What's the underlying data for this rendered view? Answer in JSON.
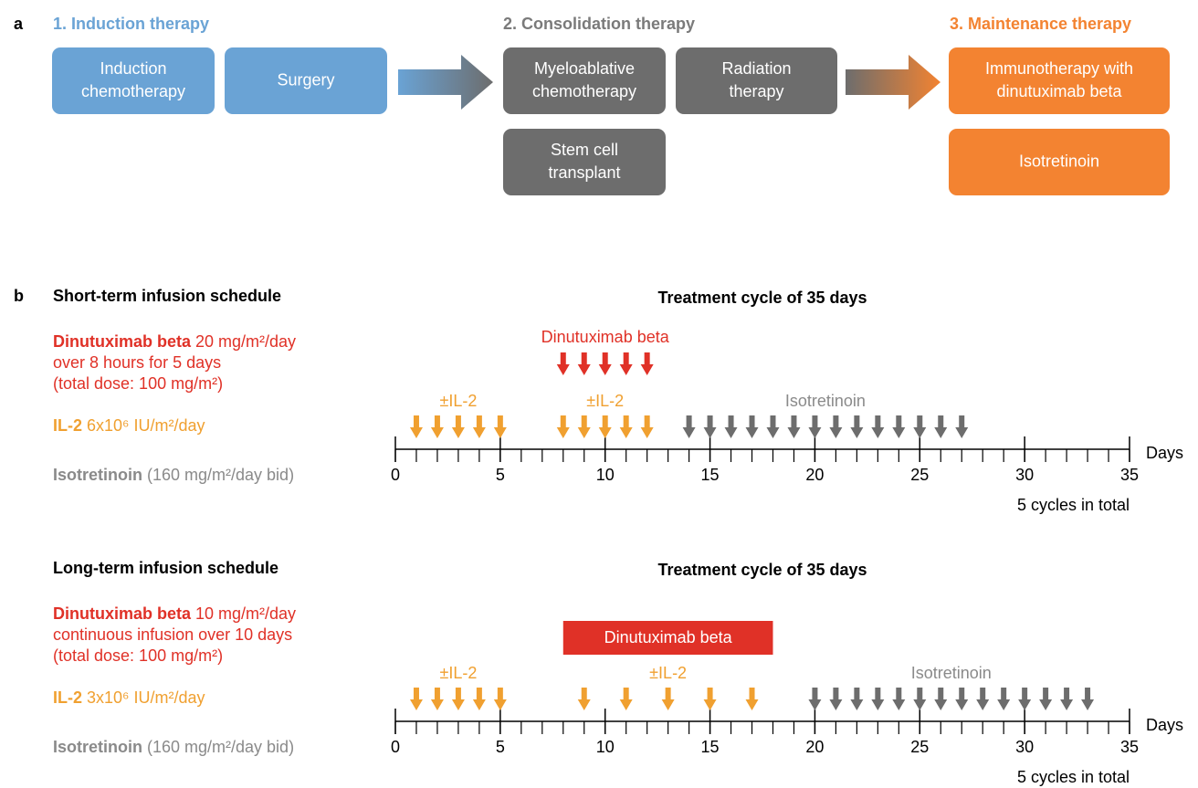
{
  "panel_a": {
    "label": "a",
    "stages": [
      {
        "title": "1. Induction therapy",
        "boxes": [
          [
            "Induction",
            "chemotherapy"
          ],
          [
            "Surgery"
          ]
        ]
      },
      {
        "title": "2. Consolidation therapy",
        "boxes": [
          [
            "Myeloablative",
            "chemotherapy"
          ],
          [
            "Radiation",
            "therapy"
          ],
          [
            "Stem cell",
            "transplant"
          ]
        ]
      },
      {
        "title": "3. Maintenance therapy",
        "boxes": [
          [
            "Immunotherapy with",
            "dinutuximab beta"
          ],
          [
            "Isotretinoin"
          ]
        ]
      }
    ]
  },
  "panel_b": {
    "label": "b",
    "schedules": [
      {
        "title": "Short-term infusion schedule",
        "cycle_title": "Treatment cycle of 35 days",
        "drug_lines": [
          {
            "name": "Dinutuximab beta",
            "dose": " 20 mg/m²/day",
            "more": [
              "over 8 hours for 5 days",
              "(total dose: 100 mg/m²)"
            ]
          },
          {
            "name": "IL-2",
            "dose": " 6x10⁶ IU/m²/day",
            "more": []
          },
          {
            "name": "Isotretinoin",
            "dose": " (160 mg/m²/day bid)",
            "more": []
          }
        ],
        "dinutuximab": {
          "label": "Dinutuximab beta",
          "days": [
            8,
            9,
            10,
            11,
            12
          ]
        },
        "il2": [
          {
            "label": "±IL-2",
            "days": [
              1,
              2,
              3,
              4,
              5
            ]
          },
          {
            "label": "±IL-2",
            "days": [
              8,
              9,
              10,
              11,
              12
            ]
          }
        ],
        "isotretinoin": {
          "label": "Isotretinoin",
          "days": [
            14,
            15,
            16,
            17,
            18,
            19,
            20,
            21,
            22,
            23,
            24,
            25,
            26,
            27
          ]
        },
        "xlim": [
          0,
          35
        ],
        "xticks": [
          0,
          5,
          10,
          15,
          20,
          25,
          30,
          35
        ],
        "axis_label": "Days",
        "note": "5 cycles in total"
      },
      {
        "title": "Long-term infusion schedule",
        "cycle_title": "Treatment cycle of 35 days",
        "drug_lines": [
          {
            "name": "Dinutuximab beta",
            "dose": " 10 mg/m²/day",
            "more": [
              "continuous infusion over 10 days",
              "(total dose: 100 mg/m²)"
            ]
          },
          {
            "name": "IL-2",
            "dose": " 3x10⁶ IU/m²/day",
            "more": []
          },
          {
            "name": "Isotretinoin",
            "dose": " (160 mg/m²/day bid)",
            "more": []
          }
        ],
        "dinutuximab_bar": {
          "label": "Dinutuximab beta",
          "start": 8,
          "end": 18
        },
        "il2": [
          {
            "label": "±IL-2",
            "days": [
              1,
              2,
              3,
              4,
              5
            ]
          },
          {
            "label": "±IL-2",
            "days": [
              9,
              11,
              13,
              15,
              17
            ]
          }
        ],
        "isotretinoin": {
          "label": "Isotretinoin",
          "days": [
            20,
            21,
            22,
            23,
            24,
            25,
            26,
            27,
            28,
            29,
            30,
            31,
            32,
            33
          ]
        },
        "xlim": [
          0,
          35
        ],
        "xticks": [
          0,
          5,
          10,
          15,
          20,
          25,
          30,
          35
        ],
        "axis_label": "Days",
        "note": "5 cycles in total"
      }
    ]
  }
}
